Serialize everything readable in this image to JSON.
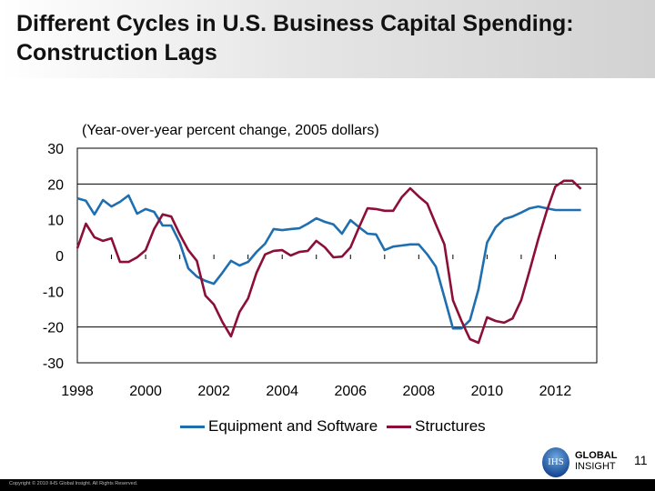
{
  "slide": {
    "title_line1": "Different Cycles in U.S. Business Capital Spending:",
    "title_line2": "Construction Lags",
    "page_number": "11",
    "copyright": "Copyright © 2010 IHS Global Insight. All Rights Reserved.",
    "logo": {
      "mark": "IHS",
      "line1": "GLOBAL",
      "line2": "INSIGHT"
    }
  },
  "chart_data": {
    "type": "line",
    "subtitle": "(Year-over-year percent change, 2005 dollars)",
    "x_start": 1998,
    "frequency": "quarterly",
    "xlim": [
      1998,
      2013
    ],
    "ylim": [
      -30,
      30
    ],
    "x_ticks": [
      "1998",
      "2000",
      "2002",
      "2004",
      "2006",
      "2008",
      "2010",
      "2012"
    ],
    "y_ticks": [
      "30",
      "20",
      "10",
      "0",
      "-10",
      "-20",
      "-30"
    ],
    "gridlines": [
      20,
      -20
    ],
    "legend_position": "bottom",
    "series": [
      {
        "name": "Equipment and Software",
        "color": "#1f6fb0",
        "values": [
          16.0,
          15.3,
          11.5,
          15.5,
          13.7,
          15.0,
          16.8,
          11.7,
          13.0,
          12.2,
          8.4,
          8.4,
          3.6,
          -3.6,
          -5.9,
          -7.1,
          -7.9,
          -4.8,
          -1.5,
          -2.8,
          -1.8,
          1.0,
          3.3,
          7.4,
          7.1,
          7.4,
          7.6,
          8.9,
          10.4,
          9.4,
          8.7,
          6.1,
          9.9,
          7.9,
          6.1,
          5.9,
          1.5,
          2.5,
          2.8,
          3.1,
          3.1,
          0.3,
          -3.1,
          -11.7,
          -20.4,
          -20.4,
          -18.1,
          -9.4,
          3.6,
          7.9,
          10.2,
          10.9,
          12.0,
          13.2,
          13.7,
          13.2,
          12.7,
          12.7,
          12.7,
          12.7
        ]
      },
      {
        "name": "Structures",
        "color": "#8b0f36",
        "values": [
          2.0,
          8.9,
          5.1,
          4.1,
          4.8,
          -1.8,
          -1.8,
          -0.5,
          1.5,
          7.4,
          11.5,
          10.9,
          5.9,
          1.5,
          -1.5,
          -11.2,
          -13.7,
          -18.6,
          -22.6,
          -15.8,
          -12.0,
          -4.8,
          0.3,
          1.3,
          1.5,
          0.0,
          1.0,
          1.3,
          4.1,
          2.3,
          -0.5,
          -0.3,
          2.3,
          7.9,
          13.2,
          13.0,
          12.5,
          12.5,
          16.3,
          18.8,
          16.5,
          14.5,
          8.7,
          3.1,
          -12.5,
          -18.3,
          -23.4,
          -24.4,
          -17.3,
          -18.3,
          -18.8,
          -17.6,
          -12.5,
          -4.1,
          4.6,
          12.5,
          19.3,
          20.9,
          20.9,
          18.6
        ]
      }
    ]
  }
}
